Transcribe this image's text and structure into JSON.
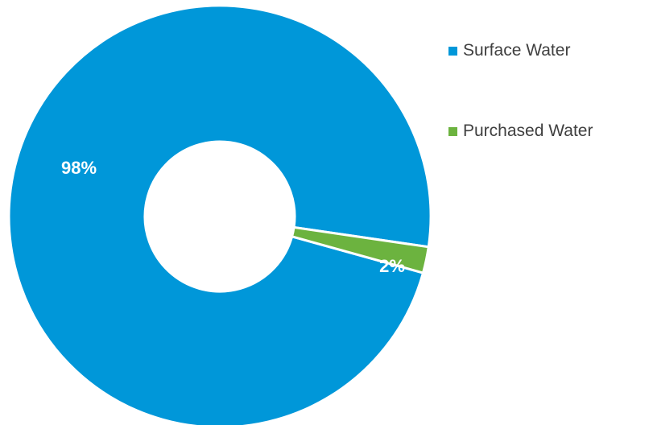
{
  "chart_data": {
    "type": "pie",
    "donut": true,
    "title": "",
    "categories": [
      "Surface Water",
      "Purchased Water"
    ],
    "values": [
      98,
      2
    ],
    "data_labels": [
      "98%",
      "2%"
    ],
    "colors": [
      "#0097d9",
      "#6cb33f"
    ],
    "legend_position": "right",
    "series": [
      {
        "values": [
          98,
          2
        ]
      }
    ]
  }
}
